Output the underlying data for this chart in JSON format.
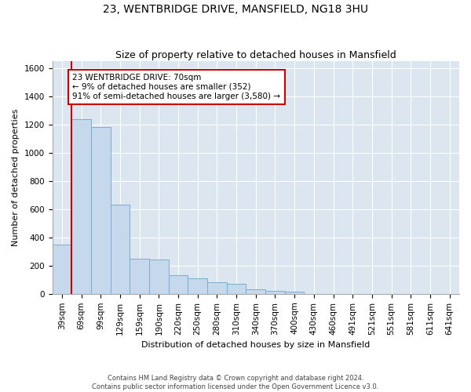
{
  "title": "23, WENTBRIDGE DRIVE, MANSFIELD, NG18 3HU",
  "subtitle": "Size of property relative to detached houses in Mansfield",
  "xlabel": "Distribution of detached houses by size in Mansfield",
  "ylabel": "Number of detached properties",
  "footer_line1": "Contains HM Land Registry data © Crown copyright and database right 2024.",
  "footer_line2": "Contains public sector information licensed under the Open Government Licence v3.0.",
  "annotation_line1": "23 WENTBRIDGE DRIVE: 70sqm",
  "annotation_line2": "← 9% of detached houses are smaller (352)",
  "annotation_line3": "91% of semi-detached houses are larger (3,580) →",
  "bar_color": "#c5d8ec",
  "bar_edge_color": "#7aadcf",
  "bg_color": "#dce6f0",
  "grid_color": "#ffffff",
  "red_line_color": "#cc0000",
  "annotation_box_color": "#cc0000",
  "categories": [
    "39sqm",
    "69sqm",
    "99sqm",
    "129sqm",
    "159sqm",
    "190sqm",
    "220sqm",
    "250sqm",
    "280sqm",
    "310sqm",
    "340sqm",
    "370sqm",
    "400sqm",
    "430sqm",
    "460sqm",
    "491sqm",
    "521sqm",
    "551sqm",
    "581sqm",
    "611sqm",
    "641sqm"
  ],
  "values": [
    352,
    1240,
    1185,
    635,
    252,
    245,
    135,
    110,
    85,
    70,
    30,
    20,
    15,
    0,
    0,
    0,
    0,
    0,
    0,
    0,
    0
  ],
  "ylim": [
    0,
    1650
  ],
  "yticks": [
    0,
    200,
    400,
    600,
    800,
    1000,
    1200,
    1400,
    1600
  ],
  "red_line_x": 0.5,
  "title_fontsize": 10,
  "subtitle_fontsize": 9,
  "axis_label_fontsize": 8,
  "tick_fontsize": 7.5,
  "annotation_fontsize": 7.5
}
